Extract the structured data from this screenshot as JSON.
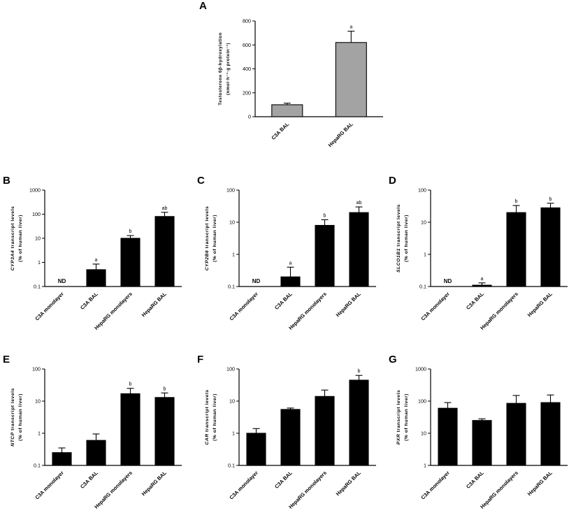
{
  "nd_label": "ND",
  "chart_data": [
    {
      "panel": "A",
      "type": "bar",
      "scale": "linear",
      "ylabel_line1": "Testosterone 6β-hydroxylation",
      "ylabel_line2": "(nmol·h⁻¹·g protein⁻¹)",
      "ylim": [
        0,
        800
      ],
      "yticks": [
        0,
        200,
        400,
        600,
        800
      ],
      "categories": [
        "C3A BAL",
        "HepaRG BAL"
      ],
      "values": [
        100,
        620
      ],
      "errors": [
        13,
        95
      ],
      "annotations": [
        "",
        "a"
      ],
      "nd": [
        false,
        false
      ],
      "bar_color": "#a3a3a3"
    },
    {
      "panel": "B",
      "type": "bar",
      "scale": "log",
      "ylabel_italic": "CYP3A4",
      "ylabel_line1": "transcript levels",
      "ylabel_line2": "(% of human liver)",
      "ylim": [
        0.1,
        1000
      ],
      "yticks": [
        0.1,
        1,
        10,
        100,
        1000
      ],
      "categories": [
        "C3A monolayer",
        "C3A BAL",
        "HepaRG monolayers",
        "HepaRG BAL"
      ],
      "values": [
        null,
        0.5,
        10,
        80
      ],
      "errors": [
        null,
        0.35,
        3,
        40
      ],
      "annotations": [
        "",
        "a",
        "b",
        "ab"
      ],
      "nd": [
        true,
        false,
        false,
        false
      ],
      "bar_color": "#000000"
    },
    {
      "panel": "C",
      "type": "bar",
      "scale": "log",
      "ylabel_italic": "CYP2B6",
      "ylabel_line1": "transcript levels",
      "ylabel_line2": "(% of human liver)",
      "ylim": [
        0.1,
        100
      ],
      "yticks": [
        0.1,
        1,
        10,
        100
      ],
      "categories": [
        "C3A monolayer",
        "C3A BAL",
        "HepaRG monolayers",
        "HepaRG BAL"
      ],
      "values": [
        null,
        0.2,
        8,
        20
      ],
      "errors": [
        null,
        0.2,
        4,
        10
      ],
      "annotations": [
        "",
        "a",
        "b",
        "ab"
      ],
      "nd": [
        true,
        false,
        false,
        false
      ],
      "bar_color": "#000000"
    },
    {
      "panel": "D",
      "type": "bar",
      "scale": "log",
      "ylabel_italic": "SLCO1B1",
      "ylabel_line1": "transcript levels",
      "ylabel_line2": "(% of human liver)",
      "ylim": [
        0.1,
        100
      ],
      "yticks": [
        0.1,
        1,
        10,
        100
      ],
      "categories": [
        "C3A monolayer",
        "C3A BAL",
        "HepaRG monolayers",
        "HepaRG BAL"
      ],
      "values": [
        null,
        0.11,
        20,
        28
      ],
      "errors": [
        null,
        0.02,
        13,
        11
      ],
      "annotations": [
        "",
        "a",
        "b",
        "b"
      ],
      "nd": [
        true,
        false,
        false,
        false
      ],
      "bar_color": "#000000"
    },
    {
      "panel": "E",
      "type": "bar",
      "scale": "log",
      "ylabel_italic": "NTCP",
      "ylabel_line1": "transcript levels",
      "ylabel_line2": "(% of human liver)",
      "ylim": [
        0.1,
        100
      ],
      "yticks": [
        0.1,
        1,
        10,
        100
      ],
      "categories": [
        "C3A monolayer",
        "C3A BAL",
        "HepaRG monolayers",
        "HepaRG BAL"
      ],
      "values": [
        0.25,
        0.6,
        17,
        13
      ],
      "errors": [
        0.1,
        0.35,
        8,
        5
      ],
      "annotations": [
        "",
        "",
        "b",
        "b"
      ],
      "nd": [
        false,
        false,
        false,
        false
      ],
      "bar_color": "#000000"
    },
    {
      "panel": "F",
      "type": "bar",
      "scale": "log",
      "ylabel_italic": "CAR",
      "ylabel_line1": "transcript levels",
      "ylabel_line2": "(% of human liver)",
      "ylim": [
        0.1,
        100
      ],
      "yticks": [
        0.1,
        1,
        10,
        100
      ],
      "categories": [
        "C3A monolayer",
        "C3A BAL",
        "HepaRG monolayers",
        "HepaRG BAL"
      ],
      "values": [
        1.0,
        5.5,
        14,
        45
      ],
      "errors": [
        0.4,
        0.6,
        8,
        18
      ],
      "annotations": [
        "",
        "",
        "",
        "b"
      ],
      "nd": [
        false,
        false,
        false,
        false
      ],
      "bar_color": "#000000"
    },
    {
      "panel": "G",
      "type": "bar",
      "scale": "log",
      "ylabel_italic": "PXR",
      "ylabel_line1": "transcript levels",
      "ylabel_line2": "(% of human liver)",
      "ylim": [
        1,
        1000
      ],
      "yticks": [
        1,
        10,
        100,
        1000
      ],
      "categories": [
        "C3A monolayer",
        "C3A BAL",
        "HepaRG monolayers",
        "HepaRG BAL"
      ],
      "values": [
        60,
        25,
        85,
        90
      ],
      "errors": [
        30,
        3,
        65,
        65
      ],
      "annotations": [
        "",
        "",
        "",
        ""
      ],
      "nd": [
        false,
        false,
        false,
        false
      ],
      "bar_color": "#000000"
    }
  ]
}
